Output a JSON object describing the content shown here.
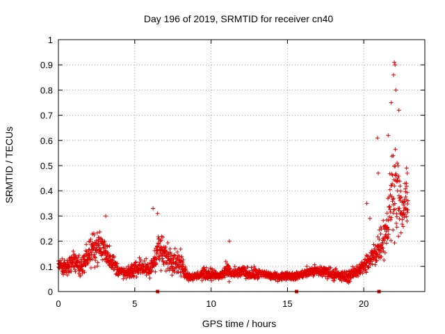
{
  "chart_data": {
    "type": "scatter",
    "title": "Day 196 of 2019, SRMTID for receiver cn40",
    "xlabel": "GPS time / hours",
    "ylabel": "SRMTID / TECUs",
    "xlim": [
      0,
      24
    ],
    "ylim": [
      0,
      1
    ],
    "xticks": [
      "0",
      "5",
      "10",
      "15",
      "20"
    ],
    "xtick_values": [
      0,
      5,
      10,
      15,
      20
    ],
    "yticks": [
      "0",
      "0.1",
      "0.2",
      "0.3",
      "0.4",
      "0.5",
      "0.6",
      "0.7",
      "0.8",
      "0.9",
      "1"
    ],
    "ytick_values": [
      0,
      0.1,
      0.2,
      0.3,
      0.4,
      0.5,
      0.6,
      0.7,
      0.8,
      0.9,
      1.0
    ],
    "grid": true,
    "marker": "+",
    "series_color": "#e00000",
    "envelope": {
      "description": "approximate typical SRMTID level vs hour (scatter cloud follows this with spread)",
      "hours": [
        0,
        0.5,
        1.0,
        1.5,
        2.0,
        2.5,
        3.0,
        3.5,
        4.0,
        4.5,
        5.0,
        5.5,
        6.0,
        6.5,
        7.0,
        7.5,
        8.0,
        8.5,
        9.0,
        9.5,
        10.0,
        10.5,
        11.0,
        11.5,
        12.0,
        12.5,
        13.0,
        13.5,
        14.0,
        14.5,
        15.0,
        15.5,
        16.0,
        16.5,
        17.0,
        17.5,
        18.0,
        18.5,
        19.0,
        19.5,
        20.0,
        20.5,
        21.0,
        21.5,
        22.0,
        22.5,
        22.9
      ],
      "level": [
        0.11,
        0.09,
        0.12,
        0.1,
        0.15,
        0.18,
        0.17,
        0.12,
        0.08,
        0.07,
        0.09,
        0.1,
        0.08,
        0.17,
        0.14,
        0.13,
        0.11,
        0.06,
        0.06,
        0.07,
        0.07,
        0.06,
        0.08,
        0.07,
        0.08,
        0.07,
        0.07,
        0.07,
        0.06,
        0.06,
        0.065,
        0.06,
        0.07,
        0.08,
        0.08,
        0.08,
        0.07,
        0.06,
        0.06,
        0.08,
        0.1,
        0.13,
        0.18,
        0.25,
        0.45,
        0.3,
        0.38
      ],
      "spread": [
        0.04,
        0.04,
        0.05,
        0.05,
        0.07,
        0.08,
        0.09,
        0.05,
        0.03,
        0.03,
        0.04,
        0.05,
        0.04,
        0.1,
        0.07,
        0.07,
        0.06,
        0.02,
        0.02,
        0.03,
        0.03,
        0.02,
        0.04,
        0.03,
        0.03,
        0.03,
        0.03,
        0.02,
        0.02,
        0.02,
        0.02,
        0.02,
        0.02,
        0.03,
        0.03,
        0.03,
        0.03,
        0.03,
        0.03,
        0.03,
        0.04,
        0.06,
        0.1,
        0.12,
        0.25,
        0.12,
        0.1
      ]
    },
    "notable_points": [
      {
        "x": 3.1,
        "y": 0.3
      },
      {
        "x": 6.2,
        "y": 0.33
      },
      {
        "x": 6.5,
        "y": 0.31
      },
      {
        "x": 11.2,
        "y": 0.2
      },
      {
        "x": 20.2,
        "y": 0.35
      },
      {
        "x": 20.4,
        "y": 0.29
      },
      {
        "x": 20.9,
        "y": 0.61
      },
      {
        "x": 20.95,
        "y": 0.47
      },
      {
        "x": 21.6,
        "y": 0.62
      },
      {
        "x": 21.8,
        "y": 0.75
      },
      {
        "x": 21.95,
        "y": 0.86
      },
      {
        "x": 22.0,
        "y": 0.91
      },
      {
        "x": 22.05,
        "y": 0.9
      },
      {
        "x": 22.1,
        "y": 0.8
      },
      {
        "x": 22.3,
        "y": 0.72
      },
      {
        "x": 22.8,
        "y": 0.49
      },
      {
        "x": 22.85,
        "y": 0.47
      }
    ],
    "axis_markers": [
      {
        "x": 6.5,
        "y": 0
      },
      {
        "x": 15.6,
        "y": 0
      },
      {
        "x": 21.0,
        "y": 0
      }
    ]
  }
}
